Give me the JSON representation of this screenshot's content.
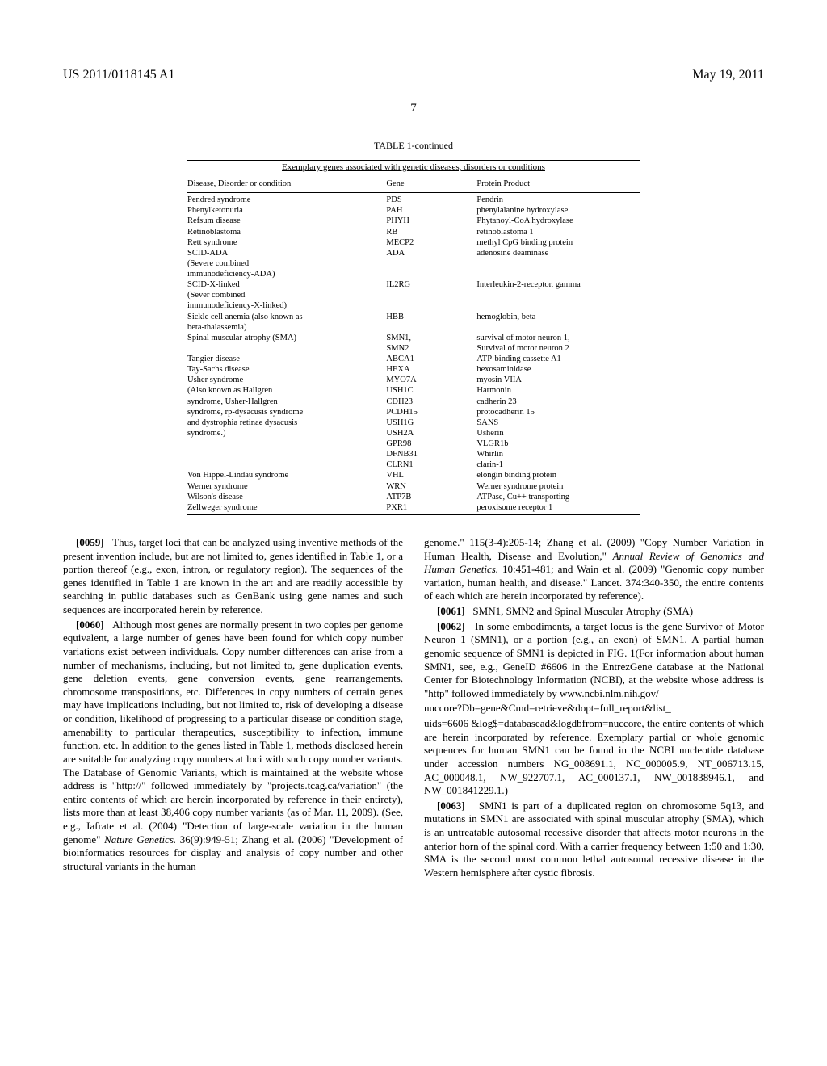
{
  "header": {
    "pub_number": "US 2011/0118145 A1",
    "date": "May 19, 2011",
    "page_number": "7"
  },
  "table": {
    "title": "TABLE 1-continued",
    "subtitle": "Exemplary genes associated with genetic diseases, disorders or conditions",
    "columns": [
      "Disease, Disorder or condition",
      "Gene",
      "Protein Product"
    ],
    "rows": [
      [
        "Pendred syndrome",
        "PDS",
        "Pendrin"
      ],
      [
        "Phenylketonuria",
        "PAH",
        "phenylalanine hydroxylase"
      ],
      [
        "Refsum disease",
        "PHYH",
        "Phytanoyl-CoA hydroxylase"
      ],
      [
        "Retinoblastoma",
        "RB",
        "retinoblastoma 1"
      ],
      [
        "Rett syndrome",
        "MECP2",
        "methyl CpG binding protein"
      ],
      [
        "SCID-ADA",
        "ADA",
        "adenosine deaminase"
      ],
      [
        "(Severe combined",
        "",
        ""
      ],
      [
        "immunodeficiency-ADA)",
        "",
        ""
      ],
      [
        "SCID-X-linked",
        "IL2RG",
        "Interleukin-2-receptor, gamma"
      ],
      [
        "(Sever combined",
        "",
        ""
      ],
      [
        "immunodeficiency-X-linked)",
        "",
        ""
      ],
      [
        "Sickle cell anemia (also known as",
        "HBB",
        "hemoglobin, beta"
      ],
      [
        "beta-thalassemia)",
        "",
        ""
      ],
      [
        "Spinal muscular atrophy (SMA)",
        "SMN1,",
        "survival of motor neuron 1,"
      ],
      [
        "",
        "SMN2",
        "Survival of motor neuron 2"
      ],
      [
        "Tangier disease",
        "ABCA1",
        "ATP-binding cassette A1"
      ],
      [
        "Tay-Sachs disease",
        "HEXA",
        "hexosaminidase"
      ],
      [
        "Usher syndrome",
        "MYO7A",
        "myosin VIIA"
      ],
      [
        "(Also known as Hallgren",
        "USH1C",
        "Harmonin"
      ],
      [
        "syndrome, Usher-Hallgren",
        "CDH23",
        "cadherin 23"
      ],
      [
        "syndrome, rp-dysacusis syndrome",
        "PCDH15",
        "protocadherin 15"
      ],
      [
        "and dystrophia retinae dysacusis",
        "USH1G",
        "SANS"
      ],
      [
        "syndrome.)",
        "USH2A",
        "Usherin"
      ],
      [
        "",
        "GPR98",
        "VLGR1b"
      ],
      [
        "",
        "DFNB31",
        "Whirlin"
      ],
      [
        "",
        "CLRN1",
        "clarin-1"
      ],
      [
        "Von Hippel-Lindau syndrome",
        "VHL",
        "elongin binding protein"
      ],
      [
        "Werner syndrome",
        "WRN",
        "Werner syndrome protein"
      ],
      [
        "Wilson's disease",
        "ATP7B",
        "ATPase, Cu++ transporting"
      ],
      [
        "Zellweger syndrome",
        "PXR1",
        "peroxisome receptor 1"
      ]
    ]
  },
  "paragraphs": {
    "p0059_num": "[0059]",
    "p0059": "Thus, target loci that can be analyzed using inventive methods of the present invention include, but are not limited to, genes identified in Table 1, or a portion thereof (e.g., exon, intron, or regulatory region). The sequences of the genes identified in Table 1 are known in the art and are readily accessible by searching in public databases such as GenBank using gene names and such sequences are incorporated herein by reference.",
    "p0060_num": "[0060]",
    "p0060": "Although most genes are normally present in two copies per genome equivalent, a large number of genes have been found for which copy number variations exist between individuals. Copy number differences can arise from a number of mechanisms, including, but not limited to, gene duplication events, gene deletion events, gene conversion events, gene rearrangements, chromosome transpositions, etc. Differences in copy numbers of certain genes may have implications including, but not limited to, risk of developing a disease or condition, likelihood of progressing to a particular disease or condition stage, amenability to particular therapeutics, susceptibility to infection, immune function, etc. In addition to the genes listed in Table 1, methods disclosed herein are suitable for analyzing copy numbers at loci with such copy number variants. The Database of Genomic Variants, which is maintained at the website whose address is \"http://\" followed immediately by \"projects.tcag.ca/variation\" (the entire contents of which are herein incorporated by reference in their entirety), lists more than at least 38,406 copy number variants (as of Mar. 11, 2009). (See, e.g., Iafrate et al. (2004) \"Detection of large-scale variation in the human genome\" ",
    "p0060_italic": "Nature Genetics.",
    "p0060_tail": " 36(9):949-51; Zhang et al. (2006) \"Development of bioinformatics resources for display and analysis of copy number and other structural variants in the human",
    "col2_lead": "genome.\" 115(3-4):205-14; Zhang et al. (2009) \"Copy Number Variation in Human Health, Disease and Evolution,\" ",
    "col2_italic1": "Annual Review of Genomics and Human Genetics.",
    "col2_tail1": " 10:451-481; and Wain et al. (2009) \"Genomic copy number variation, human health, and disease.\" Lancet. 374:340-350, the entire contents of each which are herein incorporated by reference).",
    "p0061_num": "[0061]",
    "p0061": "SMN1, SMN2 and Spinal Muscular Atrophy (SMA)",
    "p0062_num": "[0062]",
    "p0062": "In some embodiments, a target locus is the gene Survivor of Motor Neuron 1 (SMN1), or a portion (e.g., an exon) of SMN1. A partial human genomic sequence of SMN1 is depicted in FIG. 1(For information about human SMN1, see, e.g., GeneID #6606 in the EntrezGene database at the National Center for Biotechnology Information (NCBI), at the website whose address is \"http\" followed immediately by www.ncbi.nlm.nih.gov/",
    "p0062_url": "nuccore?Db=gene&Cmd=retrieve&dopt=full_report&list_",
    "p0062_tail": "uids=6606 &log$=databasead&logdbfrom=nuccore, the entire contents of which are herein incorporated by reference. Exemplary partial or whole genomic sequences for human SMN1 can be found in the NCBI nucleotide database under accession numbers NG_008691.1, NC_000005.9, NT_006713.15, AC_000048.1, NW_922707.1, AC_000137.1, NW_001838946.1, and NW_001841229.1.)",
    "p0063_num": "[0063]",
    "p0063": "SMN1 is part of a duplicated region on chromosome 5q13, and mutations in SMN1 are associated with spinal muscular atrophy (SMA), which is an untreatable autosomal recessive disorder that affects motor neurons in the anterior horn of the spinal cord. With a carrier frequency between 1:50 and 1:30, SMA is the second most common lethal autosomal recessive disease in the Western hemisphere after cystic fibrosis."
  }
}
